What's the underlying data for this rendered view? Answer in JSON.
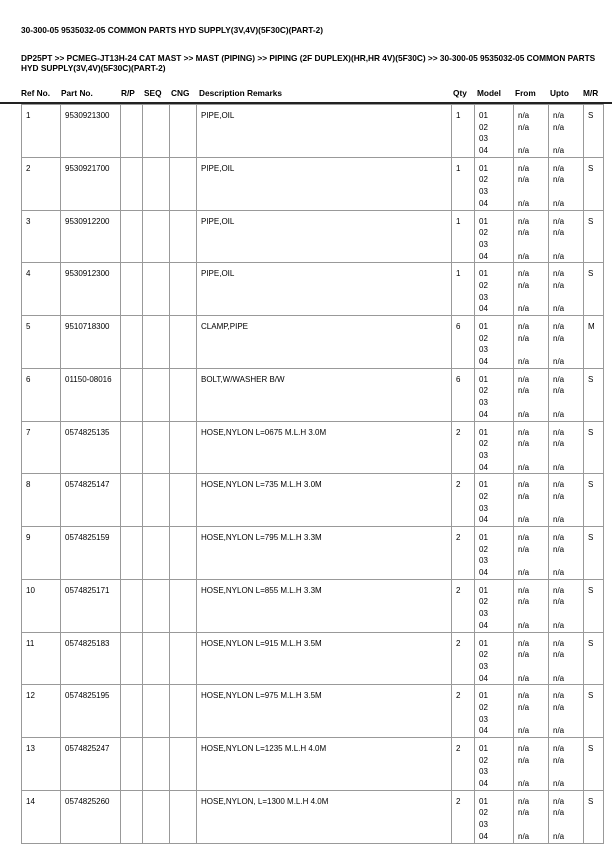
{
  "title": "30-300-05 9535032-05 COMMON PARTS HYD SUPPLY(3V,4V)(5F30C)(PART-2)",
  "breadcrumb": "DP25PT >> PCMEG-JT13H-24 CAT MAST >> MAST (PIPING) >> PIPING (2F DUPLEX)(HR,HR 4V)(5F30C) >> 30-300-05 9535032-05 COMMON PARTS HYD SUPPLY(3V,4V)(5F30C)(PART-2)",
  "columns": [
    "Ref No.",
    "Part No.",
    "R/P",
    "SEQ",
    "CNG",
    "Description Remarks",
    "Qty",
    "Model",
    "From",
    "Upto",
    "M/R"
  ],
  "models": [
    "01",
    "02",
    "03",
    "04"
  ],
  "from": [
    "n/a",
    "n/a",
    "",
    "n/a"
  ],
  "upto": [
    "n/a",
    "n/a",
    "",
    "n/a"
  ],
  "rows": [
    {
      "ref": "1",
      "part": "9530921300",
      "desc": "PIPE,OIL",
      "qty": "1",
      "mr": "S"
    },
    {
      "ref": "2",
      "part": "9530921700",
      "desc": "PIPE,OIL",
      "qty": "1",
      "mr": "S"
    },
    {
      "ref": "3",
      "part": "9530912200",
      "desc": "PIPE,OIL",
      "qty": "1",
      "mr": "S"
    },
    {
      "ref": "4",
      "part": "9530912300",
      "desc": "PIPE,OIL",
      "qty": "1",
      "mr": "S"
    },
    {
      "ref": "5",
      "part": "9510718300",
      "desc": "CLAMP,PIPE",
      "qty": "6",
      "mr": "M"
    },
    {
      "ref": "6",
      "part": "01150-08016",
      "desc": "BOLT,W/WASHER B/W",
      "qty": "6",
      "mr": "S"
    },
    {
      "ref": "7",
      "part": "0574825135",
      "desc": "HOSE,NYLON L=0675 M.L.H 3.0M",
      "qty": "2",
      "mr": "S"
    },
    {
      "ref": "8",
      "part": "0574825147",
      "desc": "HOSE,NYLON L=735 M.L.H 3.0M",
      "qty": "2",
      "mr": "S"
    },
    {
      "ref": "9",
      "part": "0574825159",
      "desc": "HOSE,NYLON L=795 M.L.H 3.3M",
      "qty": "2",
      "mr": "S"
    },
    {
      "ref": "10",
      "part": "0574825171",
      "desc": "HOSE,NYLON L=855 M.L.H 3.3M",
      "qty": "2",
      "mr": "S"
    },
    {
      "ref": "11",
      "part": "0574825183",
      "desc": "HOSE,NYLON L=915 M.L.H 3.5M",
      "qty": "2",
      "mr": "S"
    },
    {
      "ref": "12",
      "part": "0574825195",
      "desc": "HOSE,NYLON L=975 M.L.H 3.5M",
      "qty": "2",
      "mr": "S"
    },
    {
      "ref": "13",
      "part": "0574825247",
      "desc": "HOSE,NYLON L=1235 M.L.H 4.0M",
      "qty": "2",
      "mr": "S"
    },
    {
      "ref": "14",
      "part": "0574825260",
      "desc": "HOSE,NYLON, L=1300 M.L.H 4.0M",
      "qty": "2",
      "mr": "S"
    }
  ]
}
